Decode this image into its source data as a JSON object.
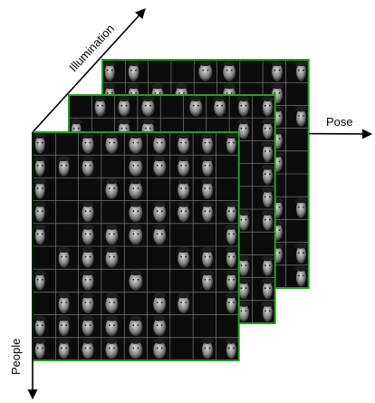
{
  "axes": {
    "illumination": "Illumination",
    "pose": "Pose",
    "people": "People"
  }
}
